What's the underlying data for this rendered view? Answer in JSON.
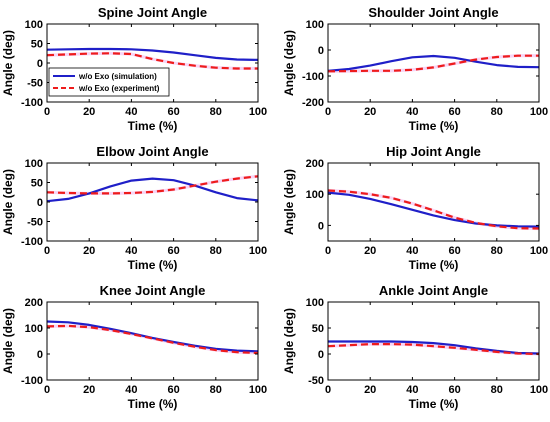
{
  "colors": {
    "sim": "#1f1fc8",
    "exp": "#ee1c1c",
    "band": "#f4b8ee"
  },
  "legend": {
    "placement": "lower-left of first panel",
    "entries": [
      "w/o Exo (simulation)",
      "w/o Exo (experiment)"
    ]
  },
  "chart_data": [
    {
      "type": "line",
      "title": "Spine Joint Angle",
      "xlabel": "Time (%)",
      "ylabel": "Angle (deg)",
      "xlim": [
        0,
        100
      ],
      "ylim": [
        -100,
        100
      ],
      "xticks": [
        0,
        20,
        40,
        60,
        80,
        100
      ],
      "yticks": [
        -100,
        -50,
        0,
        50,
        100
      ],
      "x": [
        0,
        10,
        20,
        30,
        40,
        50,
        60,
        70,
        80,
        90,
        100
      ],
      "series": [
        {
          "name": "w/o Exo (simulation)",
          "style": "solid",
          "values": [
            34,
            35,
            36,
            36,
            35,
            32,
            27,
            20,
            13,
            9,
            8
          ]
        },
        {
          "name": "w/o Exo (experiment)",
          "style": "dashed",
          "values": [
            20,
            22,
            24,
            25,
            23,
            10,
            0,
            -7,
            -12,
            -14,
            -14
          ]
        }
      ]
    },
    {
      "type": "line",
      "title": "Shoulder Joint Angle",
      "xlabel": "Time (%)",
      "ylabel": "Angle (deg)",
      "xlim": [
        0,
        100
      ],
      "ylim": [
        -200,
        100
      ],
      "xticks": [
        0,
        20,
        40,
        60,
        80,
        100
      ],
      "yticks": [
        -200,
        -100,
        0,
        100
      ],
      "x": [
        0,
        10,
        20,
        30,
        40,
        50,
        60,
        70,
        80,
        90,
        100
      ],
      "series": [
        {
          "name": "w/o Exo (simulation)",
          "style": "solid",
          "values": [
            -80,
            -73,
            -60,
            -43,
            -28,
            -23,
            -30,
            -45,
            -58,
            -65,
            -66
          ]
        },
        {
          "name": "w/o Exo (experiment)",
          "style": "dashed",
          "values": [
            -82,
            -81,
            -80,
            -80,
            -76,
            -67,
            -52,
            -37,
            -27,
            -22,
            -22
          ]
        }
      ]
    },
    {
      "type": "line",
      "title": "Elbow Joint Angle",
      "xlabel": "Time (%)",
      "ylabel": "Angle (deg)",
      "xlim": [
        0,
        100
      ],
      "ylim": [
        -100,
        100
      ],
      "xticks": [
        0,
        20,
        40,
        60,
        80,
        100
      ],
      "yticks": [
        -100,
        -50,
        0,
        50,
        100
      ],
      "x": [
        0,
        10,
        20,
        30,
        40,
        50,
        60,
        70,
        80,
        90,
        100
      ],
      "series": [
        {
          "name": "w/o Exo (simulation)",
          "style": "solid",
          "values": [
            2,
            8,
            22,
            40,
            55,
            60,
            56,
            42,
            25,
            10,
            4
          ]
        },
        {
          "name": "w/o Exo (experiment)",
          "style": "dashed",
          "values": [
            25,
            23,
            22,
            22,
            23,
            26,
            32,
            42,
            52,
            60,
            66
          ]
        }
      ]
    },
    {
      "type": "line",
      "title": "Hip Joint Angle",
      "xlabel": "Time (%)",
      "ylabel": "Angle (deg)",
      "xlim": [
        0,
        100
      ],
      "ylim": [
        -50,
        200
      ],
      "xticks": [
        0,
        20,
        40,
        60,
        80,
        100
      ],
      "yticks": [
        0,
        100,
        200
      ],
      "x": [
        0,
        10,
        20,
        30,
        40,
        50,
        60,
        70,
        80,
        90,
        100
      ],
      "series": [
        {
          "name": "w/o Exo (simulation)",
          "style": "solid",
          "values": [
            105,
            98,
            85,
            68,
            50,
            32,
            17,
            6,
            0,
            -3,
            -4
          ]
        },
        {
          "name": "w/o Exo (experiment)",
          "style": "dashed",
          "values": [
            112,
            108,
            100,
            88,
            70,
            48,
            25,
            8,
            -3,
            -9,
            -10
          ]
        }
      ]
    },
    {
      "type": "line",
      "title": "Knee Joint Angle",
      "xlabel": "Time (%)",
      "ylabel": "Angle (deg)",
      "xlim": [
        0,
        100
      ],
      "ylim": [
        -100,
        200
      ],
      "xticks": [
        0,
        20,
        40,
        60,
        80,
        100
      ],
      "yticks": [
        -100,
        0,
        100,
        200
      ],
      "x": [
        0,
        10,
        20,
        30,
        40,
        50,
        60,
        70,
        80,
        90,
        100
      ],
      "series": [
        {
          "name": "w/o Exo (simulation)",
          "style": "solid",
          "values": [
            125,
            122,
            112,
            97,
            80,
            62,
            46,
            32,
            20,
            13,
            10
          ]
        },
        {
          "name": "w/o Exo (experiment)",
          "style": "dashed",
          "values": [
            106,
            108,
            103,
            92,
            77,
            60,
            43,
            28,
            15,
            7,
            4
          ]
        }
      ]
    },
    {
      "type": "line",
      "title": "Ankle Joint Angle",
      "xlabel": "Time (%)",
      "ylabel": "Angle (deg)",
      "xlim": [
        0,
        100
      ],
      "ylim": [
        -50,
        100
      ],
      "xticks": [
        0,
        20,
        40,
        60,
        80,
        100
      ],
      "yticks": [
        -50,
        0,
        50,
        100
      ],
      "x": [
        0,
        10,
        20,
        30,
        40,
        50,
        60,
        70,
        80,
        90,
        100
      ],
      "series": [
        {
          "name": "w/o Exo (simulation)",
          "style": "solid",
          "values": [
            24,
            24,
            24,
            24,
            23,
            21,
            17,
            11,
            6,
            2,
            1
          ]
        },
        {
          "name": "w/o Exo (experiment)",
          "style": "dashed",
          "values": [
            15,
            17,
            19,
            19,
            18,
            15,
            12,
            8,
            4,
            1,
            0
          ]
        }
      ]
    }
  ]
}
